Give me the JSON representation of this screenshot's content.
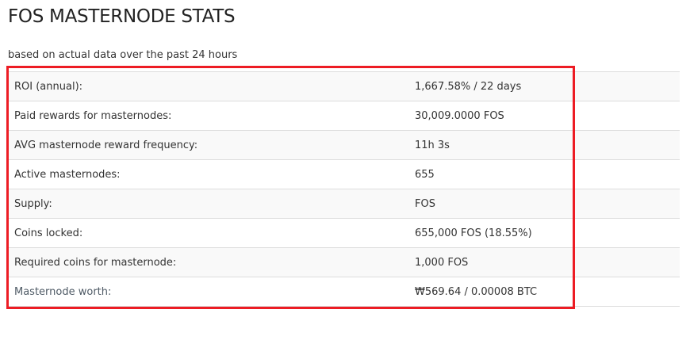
{
  "title": "FOS MASTERNODE STATS",
  "subtitle": "based on actual data over the past 24 hours",
  "highlight_color": "#ed1c24",
  "stats": [
    {
      "label": "ROI (annual):",
      "value": "1,667.58% / 22 days"
    },
    {
      "label": "Paid rewards for masternodes:",
      "value": "30,009.0000 FOS"
    },
    {
      "label": "AVG masternode reward frequency:",
      "value": "11h 3s"
    },
    {
      "label": "Active masternodes:",
      "value": "655"
    },
    {
      "label": "Supply:",
      "value": "FOS"
    },
    {
      "label": "Coins locked:",
      "value": "655,000 FOS (18.55%)"
    },
    {
      "label": "Required coins for masternode:",
      "value": "1,000 FOS"
    },
    {
      "label": "Masternode worth:",
      "value": "₩569.64 / 0.00008 BTC"
    }
  ]
}
